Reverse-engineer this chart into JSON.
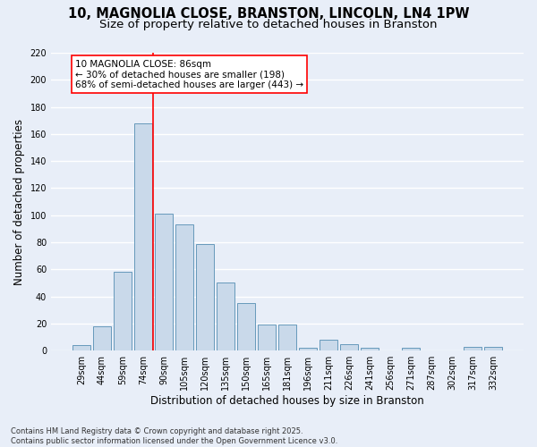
{
  "title_line1": "10, MAGNOLIA CLOSE, BRANSTON, LINCOLN, LN4 1PW",
  "title_line2": "Size of property relative to detached houses in Branston",
  "xlabel": "Distribution of detached houses by size in Branston",
  "ylabel": "Number of detached properties",
  "categories": [
    "29sqm",
    "44sqm",
    "59sqm",
    "74sqm",
    "90sqm",
    "105sqm",
    "120sqm",
    "135sqm",
    "150sqm",
    "165sqm",
    "181sqm",
    "196sqm",
    "211sqm",
    "226sqm",
    "241sqm",
    "256sqm",
    "271sqm",
    "287sqm",
    "302sqm",
    "317sqm",
    "332sqm"
  ],
  "values": [
    4,
    18,
    58,
    168,
    101,
    93,
    79,
    50,
    35,
    19,
    19,
    2,
    8,
    5,
    2,
    0,
    2,
    0,
    0,
    3,
    3
  ],
  "bar_color": "#c9d9ea",
  "bar_edge_color": "#6699bb",
  "vline_index": 3.5,
  "vline_color": "red",
  "annotation_text": "10 MAGNOLIA CLOSE: 86sqm\n← 30% of detached houses are smaller (198)\n68% of semi-detached houses are larger (443) →",
  "annotation_box_color": "white",
  "annotation_box_edge": "red",
  "ylim": [
    0,
    220
  ],
  "yticks": [
    0,
    20,
    40,
    60,
    80,
    100,
    120,
    140,
    160,
    180,
    200,
    220
  ],
  "background_color": "#e8eef8",
  "grid_color": "#ffffff",
  "footnote": "Contains HM Land Registry data © Crown copyright and database right 2025.\nContains public sector information licensed under the Open Government Licence v3.0.",
  "title_fontsize": 10.5,
  "subtitle_fontsize": 9.5,
  "axis_label_fontsize": 8.5,
  "tick_fontsize": 7,
  "annotation_fontsize": 7.5,
  "footnote_fontsize": 6
}
